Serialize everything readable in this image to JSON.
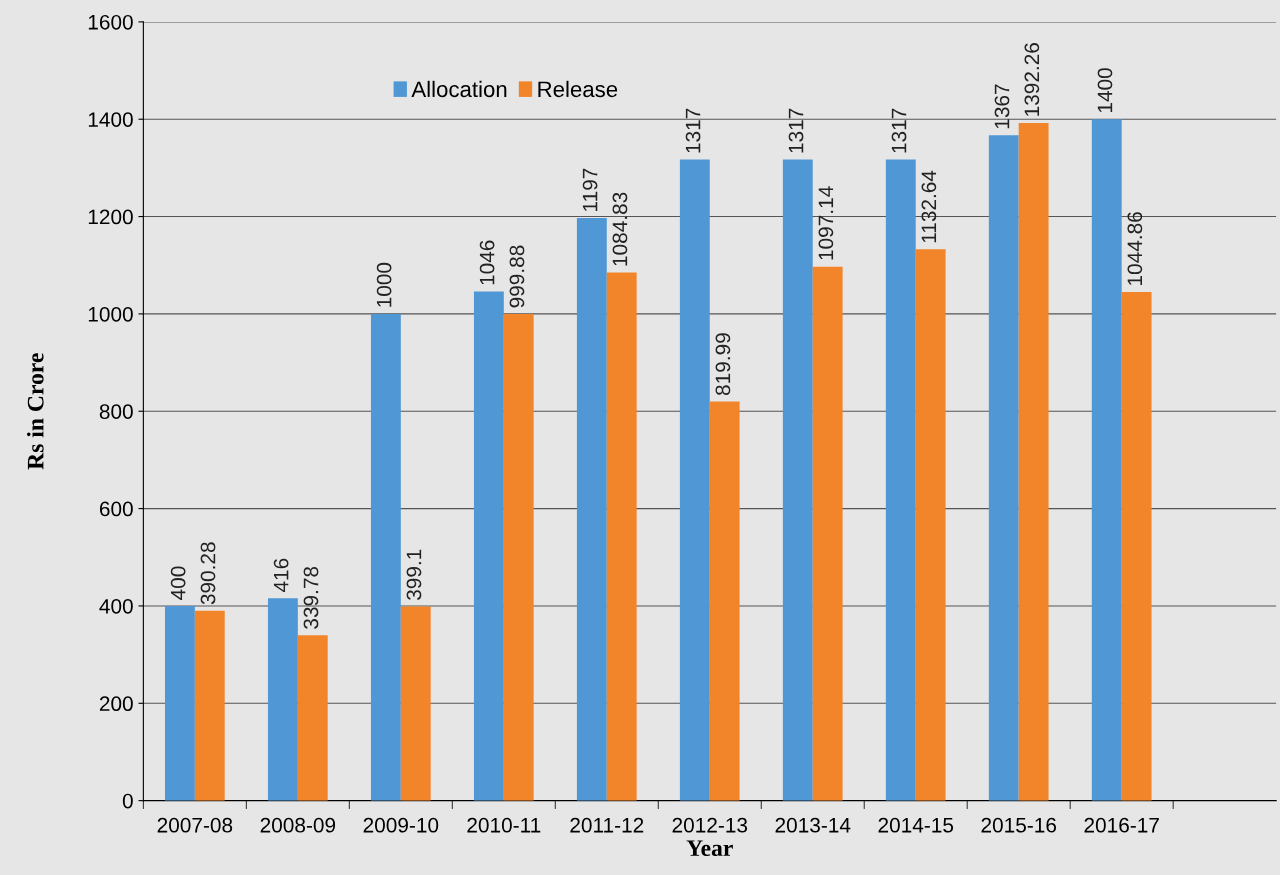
{
  "chart_data": {
    "type": "bar",
    "xlabel": "Year",
    "ylabel": "Rs in Crore",
    "categories": [
      "2007-08",
      "2008-09",
      "2009-10",
      "2010-11",
      "2011-12",
      "2012-13",
      "2013-14",
      "2014-15",
      "2015-16",
      "2016-17"
    ],
    "series": [
      {
        "name": "Allocation",
        "color": "#4f97d5",
        "values": [
          400,
          416,
          1000,
          1046,
          1197,
          1317,
          1317,
          1317,
          1367,
          1400
        ]
      },
      {
        "name": "Release",
        "color": "#f28529",
        "values": [
          390.28,
          339.78,
          399.1,
          999.88,
          1084.83,
          819.99,
          1097.14,
          1132.64,
          1392.26,
          1044.86
        ]
      }
    ],
    "ylim": [
      0,
      1600
    ],
    "yticks": [
      0,
      200,
      400,
      600,
      800,
      1000,
      1200,
      1400,
      1600
    ],
    "grid": "y",
    "legend": "top",
    "data_labels": true
  }
}
